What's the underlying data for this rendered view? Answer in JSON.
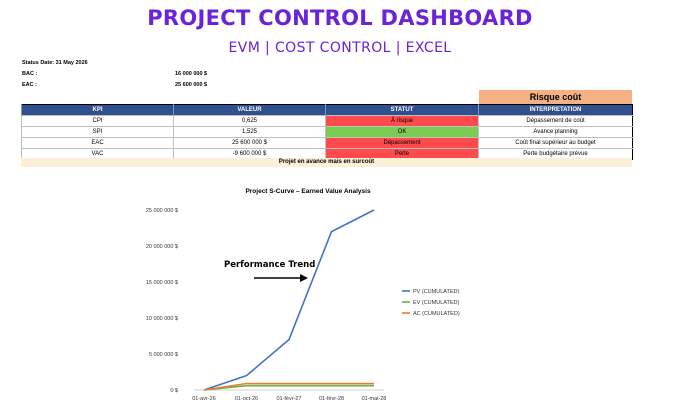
{
  "header": {
    "title": "PROJECT CONTROL DASHBOARD",
    "subtitle": "EVM | COST CONTROL | EXCEL"
  },
  "meta": {
    "status_date": "Status Date: 31 May 2026",
    "bac_label": "BAC :",
    "bac_value": "16 000 000 $",
    "eac_label": "EAC :",
    "eac_value": "25 600 000 $"
  },
  "risk_badge": "Risque coût",
  "kpi_table": {
    "headers": [
      "KPI",
      "VALEUR",
      "STATUT",
      "INTERPRETATION"
    ],
    "rows": [
      {
        "kpi": "CPI",
        "value": "0,625",
        "status": "À risque",
        "status_color": "#ff4b4b",
        "interpretation": "Dépassement de coût"
      },
      {
        "kpi": "SPI",
        "value": "1,525",
        "status": "OK",
        "status_color": "#7ccb52",
        "interpretation": "Avance planning"
      },
      {
        "kpi": "EAC",
        "value": "25 600 000 $",
        "status": "Dépassement",
        "status_color": "#ff4b4b",
        "interpretation": "Coût final supérieur au budget"
      },
      {
        "kpi": "VAC",
        "value": "-9 600 000 $",
        "status": "Perte",
        "status_color": "#ff4b4b",
        "interpretation": "Perte budgétaire prévue"
      }
    ]
  },
  "summary": "Projet en avance mais en surcoût",
  "chart_data": {
    "type": "line",
    "title": "Project S-Curve – Earned Value Analysis",
    "annotation": "Performance Trend",
    "x": [
      "01-avr-26",
      "01-oct-26",
      "01-févr-27",
      "01-févr-28",
      "01-mai-28"
    ],
    "y_ticks": [
      "0 $",
      "5 000 000 $",
      "10 000 000 $",
      "15 000 000 $",
      "20 000 000 $",
      "25 000 000 $"
    ],
    "ylim": [
      0,
      25000000
    ],
    "legend_position": "right",
    "series": [
      {
        "name": "PV (CUMULATED)",
        "color": "#4472c4",
        "values": [
          0,
          2000000,
          7000000,
          22000000,
          25000000
        ]
      },
      {
        "name": "EV (CUMULATED)",
        "color": "#70ad47",
        "values": [
          0,
          600000,
          600000,
          600000,
          600000
        ]
      },
      {
        "name": "AC (CUMULATED)",
        "color": "#ed7d31",
        "values": [
          0,
          900000,
          900000,
          900000,
          900000
        ]
      }
    ]
  }
}
